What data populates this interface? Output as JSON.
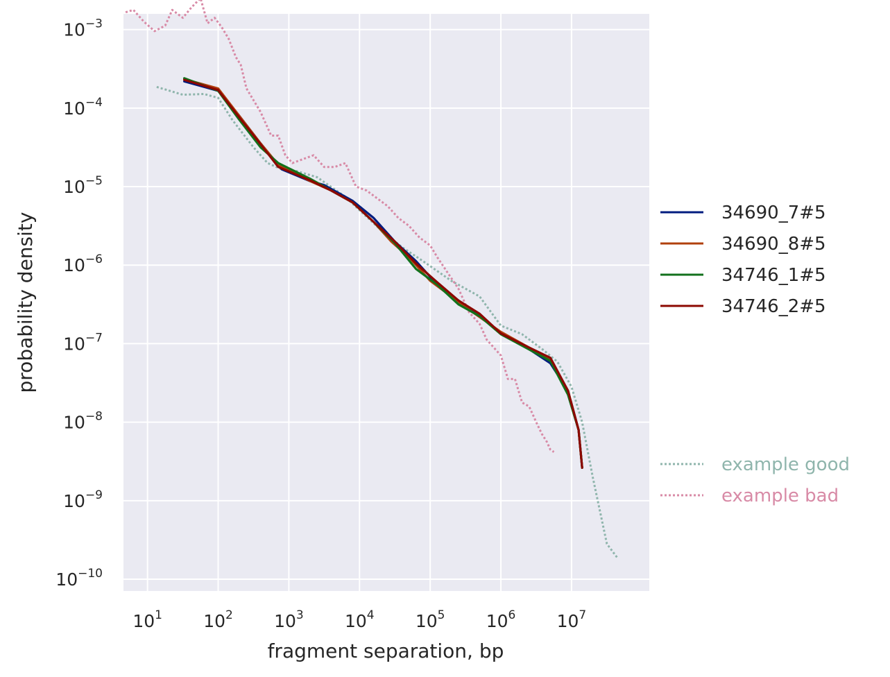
{
  "chart_data": {
    "type": "line",
    "xscale": "log",
    "yscale": "log",
    "xlabel": "fragment separation, bp",
    "ylabel": "probability density",
    "xlim_log10": [
      0.66,
      8.1
    ],
    "ylim_log10": [
      -10.15,
      -2.8
    ],
    "grid": true,
    "legend_position": "right",
    "x_ticks": [
      {
        "exp": 1,
        "label": "10",
        "sup": "1"
      },
      {
        "exp": 2,
        "label": "10",
        "sup": "2"
      },
      {
        "exp": 3,
        "label": "10",
        "sup": "3"
      },
      {
        "exp": 4,
        "label": "10",
        "sup": "4"
      },
      {
        "exp": 5,
        "label": "10",
        "sup": "5"
      },
      {
        "exp": 6,
        "label": "10",
        "sup": "6"
      },
      {
        "exp": 7,
        "label": "10",
        "sup": "7"
      }
    ],
    "y_ticks": [
      {
        "exp": -3,
        "label": "10",
        "sup": "−3"
      },
      {
        "exp": -4,
        "label": "10",
        "sup": "−4"
      },
      {
        "exp": -5,
        "label": "10",
        "sup": "−5"
      },
      {
        "exp": -6,
        "label": "10",
        "sup": "−6"
      },
      {
        "exp": -7,
        "label": "10",
        "sup": "−7"
      },
      {
        "exp": -8,
        "label": "10",
        "sup": "−8"
      },
      {
        "exp": -9,
        "label": "10",
        "sup": "−9"
      },
      {
        "exp": -10,
        "label": "10",
        "sup": "−10"
      }
    ],
    "series": [
      {
        "name": "example good",
        "color": "#8fb5ac",
        "style": "dotted",
        "group": "reference",
        "points": [
          [
            1.13,
            -3.73
          ],
          [
            1.5,
            -3.83
          ],
          [
            1.8,
            -3.82
          ],
          [
            2.0,
            -3.87
          ],
          [
            2.2,
            -4.15
          ],
          [
            2.5,
            -4.5
          ],
          [
            2.7,
            -4.7
          ],
          [
            2.9,
            -4.78
          ],
          [
            3.1,
            -4.8
          ],
          [
            3.4,
            -4.88
          ],
          [
            3.8,
            -5.13
          ],
          [
            4.0,
            -5.3
          ],
          [
            4.3,
            -5.55
          ],
          [
            4.6,
            -5.77
          ],
          [
            4.9,
            -5.95
          ],
          [
            5.3,
            -6.2
          ],
          [
            5.7,
            -6.4
          ],
          [
            6.0,
            -6.77
          ],
          [
            6.3,
            -6.88
          ],
          [
            6.6,
            -7.08
          ],
          [
            6.8,
            -7.23
          ],
          [
            7.0,
            -7.55
          ],
          [
            7.15,
            -8.0
          ],
          [
            7.3,
            -8.7
          ],
          [
            7.5,
            -9.55
          ],
          [
            7.65,
            -9.73
          ]
        ]
      },
      {
        "name": "example bad",
        "color": "#d88aa6",
        "style": "dotted",
        "group": "reference",
        "points": [
          [
            0.69,
            -2.78
          ],
          [
            0.8,
            -2.75
          ],
          [
            0.95,
            -2.9
          ],
          [
            1.1,
            -3.02
          ],
          [
            1.25,
            -2.95
          ],
          [
            1.35,
            -2.75
          ],
          [
            1.5,
            -2.85
          ],
          [
            1.62,
            -2.72
          ],
          [
            1.75,
            -2.6
          ],
          [
            1.85,
            -2.92
          ],
          [
            1.95,
            -2.85
          ],
          [
            2.05,
            -2.97
          ],
          [
            2.15,
            -3.12
          ],
          [
            2.25,
            -3.35
          ],
          [
            2.32,
            -3.45
          ],
          [
            2.4,
            -3.75
          ],
          [
            2.5,
            -3.9
          ],
          [
            2.6,
            -4.05
          ],
          [
            2.75,
            -4.35
          ],
          [
            2.85,
            -4.35
          ],
          [
            2.95,
            -4.6
          ],
          [
            3.05,
            -4.7
          ],
          [
            3.2,
            -4.65
          ],
          [
            3.35,
            -4.6
          ],
          [
            3.5,
            -4.75
          ],
          [
            3.65,
            -4.75
          ],
          [
            3.8,
            -4.7
          ],
          [
            3.95,
            -5.0
          ],
          [
            4.1,
            -5.05
          ],
          [
            4.25,
            -5.15
          ],
          [
            4.4,
            -5.25
          ],
          [
            4.55,
            -5.4
          ],
          [
            4.7,
            -5.5
          ],
          [
            4.85,
            -5.65
          ],
          [
            5.0,
            -5.75
          ],
          [
            5.1,
            -5.9
          ],
          [
            5.25,
            -6.1
          ],
          [
            5.4,
            -6.3
          ],
          [
            5.55,
            -6.6
          ],
          [
            5.7,
            -6.75
          ],
          [
            5.8,
            -6.95
          ],
          [
            5.9,
            -7.05
          ],
          [
            6.0,
            -7.15
          ],
          [
            6.1,
            -7.45
          ],
          [
            6.2,
            -7.45
          ],
          [
            6.3,
            -7.75
          ],
          [
            6.4,
            -7.8
          ],
          [
            6.5,
            -8.0
          ],
          [
            6.58,
            -8.15
          ],
          [
            6.65,
            -8.25
          ],
          [
            6.7,
            -8.35
          ],
          [
            6.75,
            -8.38
          ]
        ]
      },
      {
        "name": "34690_7#5",
        "color": "#001c7f",
        "style": "solid",
        "group": "main",
        "points": [
          [
            1.52,
            -3.66
          ],
          [
            2.0,
            -3.78
          ],
          [
            2.3,
            -4.1
          ],
          [
            2.6,
            -4.45
          ],
          [
            2.9,
            -4.78
          ],
          [
            3.3,
            -4.93
          ],
          [
            3.5,
            -4.98
          ],
          [
            3.9,
            -5.18
          ],
          [
            4.2,
            -5.4
          ],
          [
            4.5,
            -5.7
          ],
          [
            4.8,
            -5.95
          ],
          [
            5.1,
            -6.25
          ],
          [
            5.4,
            -6.45
          ],
          [
            5.7,
            -6.63
          ],
          [
            6.0,
            -6.87
          ],
          [
            6.4,
            -7.07
          ],
          [
            6.7,
            -7.25
          ],
          [
            6.95,
            -7.6
          ],
          [
            7.1,
            -8.1
          ],
          [
            7.15,
            -8.58
          ]
        ]
      },
      {
        "name": "34690_8#5",
        "color": "#b1400d",
        "style": "solid",
        "group": "main",
        "points": [
          [
            1.52,
            -3.63
          ],
          [
            2.0,
            -3.75
          ],
          [
            2.3,
            -4.1
          ],
          [
            2.6,
            -4.45
          ],
          [
            2.85,
            -4.72
          ],
          [
            3.3,
            -4.93
          ],
          [
            3.6,
            -5.05
          ],
          [
            3.9,
            -5.2
          ],
          [
            4.2,
            -5.45
          ],
          [
            4.45,
            -5.7
          ],
          [
            4.7,
            -5.9
          ],
          [
            5.0,
            -6.2
          ],
          [
            5.3,
            -6.4
          ],
          [
            5.6,
            -6.6
          ],
          [
            6.0,
            -6.85
          ],
          [
            6.4,
            -7.05
          ],
          [
            6.7,
            -7.2
          ],
          [
            6.95,
            -7.6
          ],
          [
            7.1,
            -8.1
          ],
          [
            7.15,
            -8.58
          ]
        ]
      },
      {
        "name": "34746_1#5",
        "color": "#12711c",
        "style": "solid",
        "group": "main",
        "points": [
          [
            1.52,
            -3.62
          ],
          [
            2.0,
            -3.78
          ],
          [
            2.3,
            -4.15
          ],
          [
            2.6,
            -4.5
          ],
          [
            2.85,
            -4.7
          ],
          [
            3.3,
            -4.9
          ],
          [
            3.6,
            -5.05
          ],
          [
            3.9,
            -5.2
          ],
          [
            4.2,
            -5.45
          ],
          [
            4.5,
            -5.72
          ],
          [
            4.8,
            -6.05
          ],
          [
            5.1,
            -6.25
          ],
          [
            5.4,
            -6.5
          ],
          [
            5.7,
            -6.65
          ],
          [
            6.0,
            -6.88
          ],
          [
            6.35,
            -7.05
          ],
          [
            6.7,
            -7.22
          ],
          [
            6.95,
            -7.65
          ],
          [
            7.1,
            -8.1
          ],
          [
            7.15,
            -8.58
          ]
        ]
      },
      {
        "name": "34746_2#5",
        "color": "#8c0800",
        "style": "solid",
        "group": "main",
        "points": [
          [
            1.52,
            -3.64
          ],
          [
            2.0,
            -3.77
          ],
          [
            2.3,
            -4.12
          ],
          [
            2.6,
            -4.46
          ],
          [
            2.85,
            -4.75
          ],
          [
            3.3,
            -4.92
          ],
          [
            3.6,
            -5.05
          ],
          [
            3.9,
            -5.2
          ],
          [
            4.2,
            -5.45
          ],
          [
            4.5,
            -5.7
          ],
          [
            4.8,
            -5.98
          ],
          [
            5.1,
            -6.22
          ],
          [
            5.4,
            -6.45
          ],
          [
            5.7,
            -6.62
          ],
          [
            6.0,
            -6.87
          ],
          [
            6.4,
            -7.05
          ],
          [
            6.7,
            -7.18
          ],
          [
            6.95,
            -7.6
          ],
          [
            7.1,
            -8.1
          ],
          [
            7.15,
            -8.58
          ]
        ]
      }
    ]
  }
}
